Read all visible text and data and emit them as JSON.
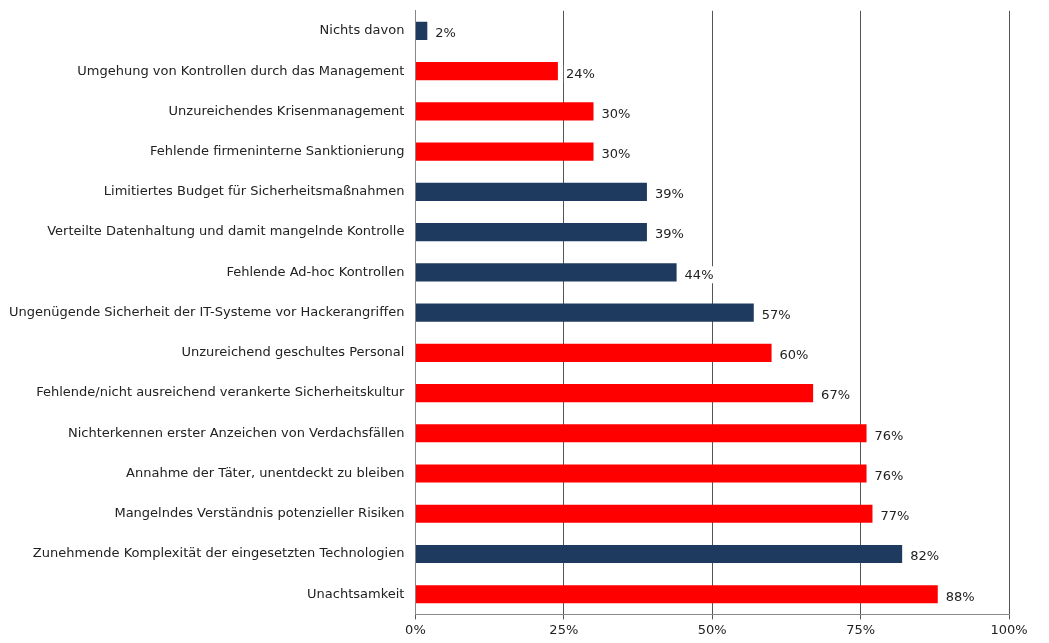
{
  "chart_data": {
    "type": "bar",
    "orientation": "horizontal",
    "categories": [
      "Nichts davon",
      "Umgehung von Kontrollen durch das Management",
      "Unzureichendes Krisenmanagement",
      "Fehlende firmeninterne Sanktionierung",
      "Limitiertes Budget für Sicherheitsmaßnahmen",
      "Verteilte Datenhaltung und damit mangelnde Kontrolle",
      "Fehlende Ad-hoc Kontrollen",
      "Ungenügende Sicherheit der IT-Systeme vor Hackerangriffen",
      "Unzureichend geschultes Personal",
      "Fehlende/nicht ausreichend verankerte Sicherheitskultur",
      "Nichterkennen erster Anzeichen von Verdachsfällen",
      "Annahme der Täter, unentdeckt zu bleiben",
      "Mangelndes Verständnis potenzieller Risiken",
      "Zunehmende Komplexität der eingesetzten Technologien",
      "Unachtsamkeit"
    ],
    "values": [
      2,
      24,
      30,
      30,
      39,
      39,
      44,
      57,
      60,
      67,
      76,
      76,
      77,
      82,
      88
    ],
    "colors": [
      "#1f3a5f",
      "#ff0000",
      "#ff0000",
      "#ff0000",
      "#1f3a5f",
      "#1f3a5f",
      "#1f3a5f",
      "#1f3a5f",
      "#ff0000",
      "#ff0000",
      "#ff0000",
      "#ff0000",
      "#ff0000",
      "#1f3a5f",
      "#ff0000"
    ],
    "value_labels": [
      "2%",
      "24%",
      "30%",
      "30%",
      "39%",
      "39%",
      "44%",
      "57%",
      "60%",
      "67%",
      "76%",
      "76%",
      "77%",
      "82%",
      "88%"
    ],
    "xlim": [
      0,
      100
    ],
    "xticks": [
      {
        "value": 0,
        "label": "0%"
      },
      {
        "value": 25,
        "label": "25%"
      },
      {
        "value": 50,
        "label": "50%"
      },
      {
        "value": 75,
        "label": "75%"
      },
      {
        "value": 100,
        "label": "100%"
      }
    ],
    "grid": "x",
    "legend": false
  }
}
